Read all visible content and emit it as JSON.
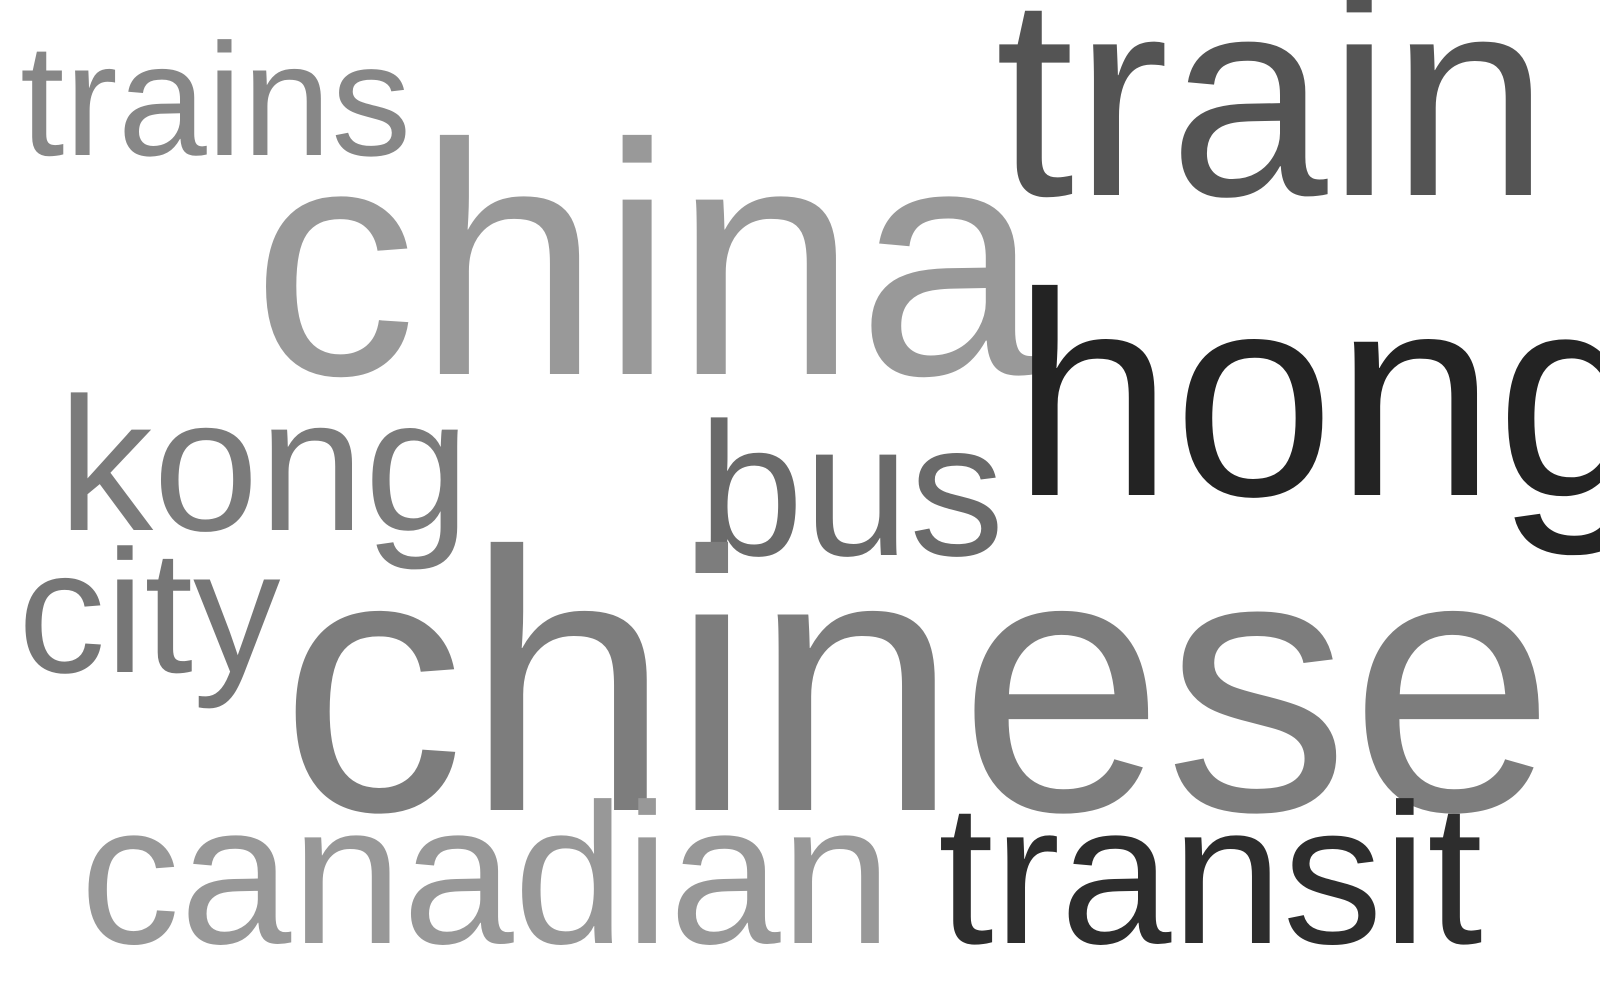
{
  "words": [
    {
      "text": "trains",
      "color": "#878787"
    },
    {
      "text": "train",
      "color": "#545454"
    },
    {
      "text": "china",
      "color": "#999999"
    },
    {
      "text": "hong",
      "color": "#232323"
    },
    {
      "text": "kong",
      "color": "#7b7b7b"
    },
    {
      "text": "bus",
      "color": "#6a6a6a"
    },
    {
      "text": "city",
      "color": "#767676"
    },
    {
      "text": "chinese",
      "color": "#7d7d7d"
    },
    {
      "text": "canadian",
      "color": "#989898"
    },
    {
      "text": "transit",
      "color": "#2d2d2d"
    }
  ]
}
